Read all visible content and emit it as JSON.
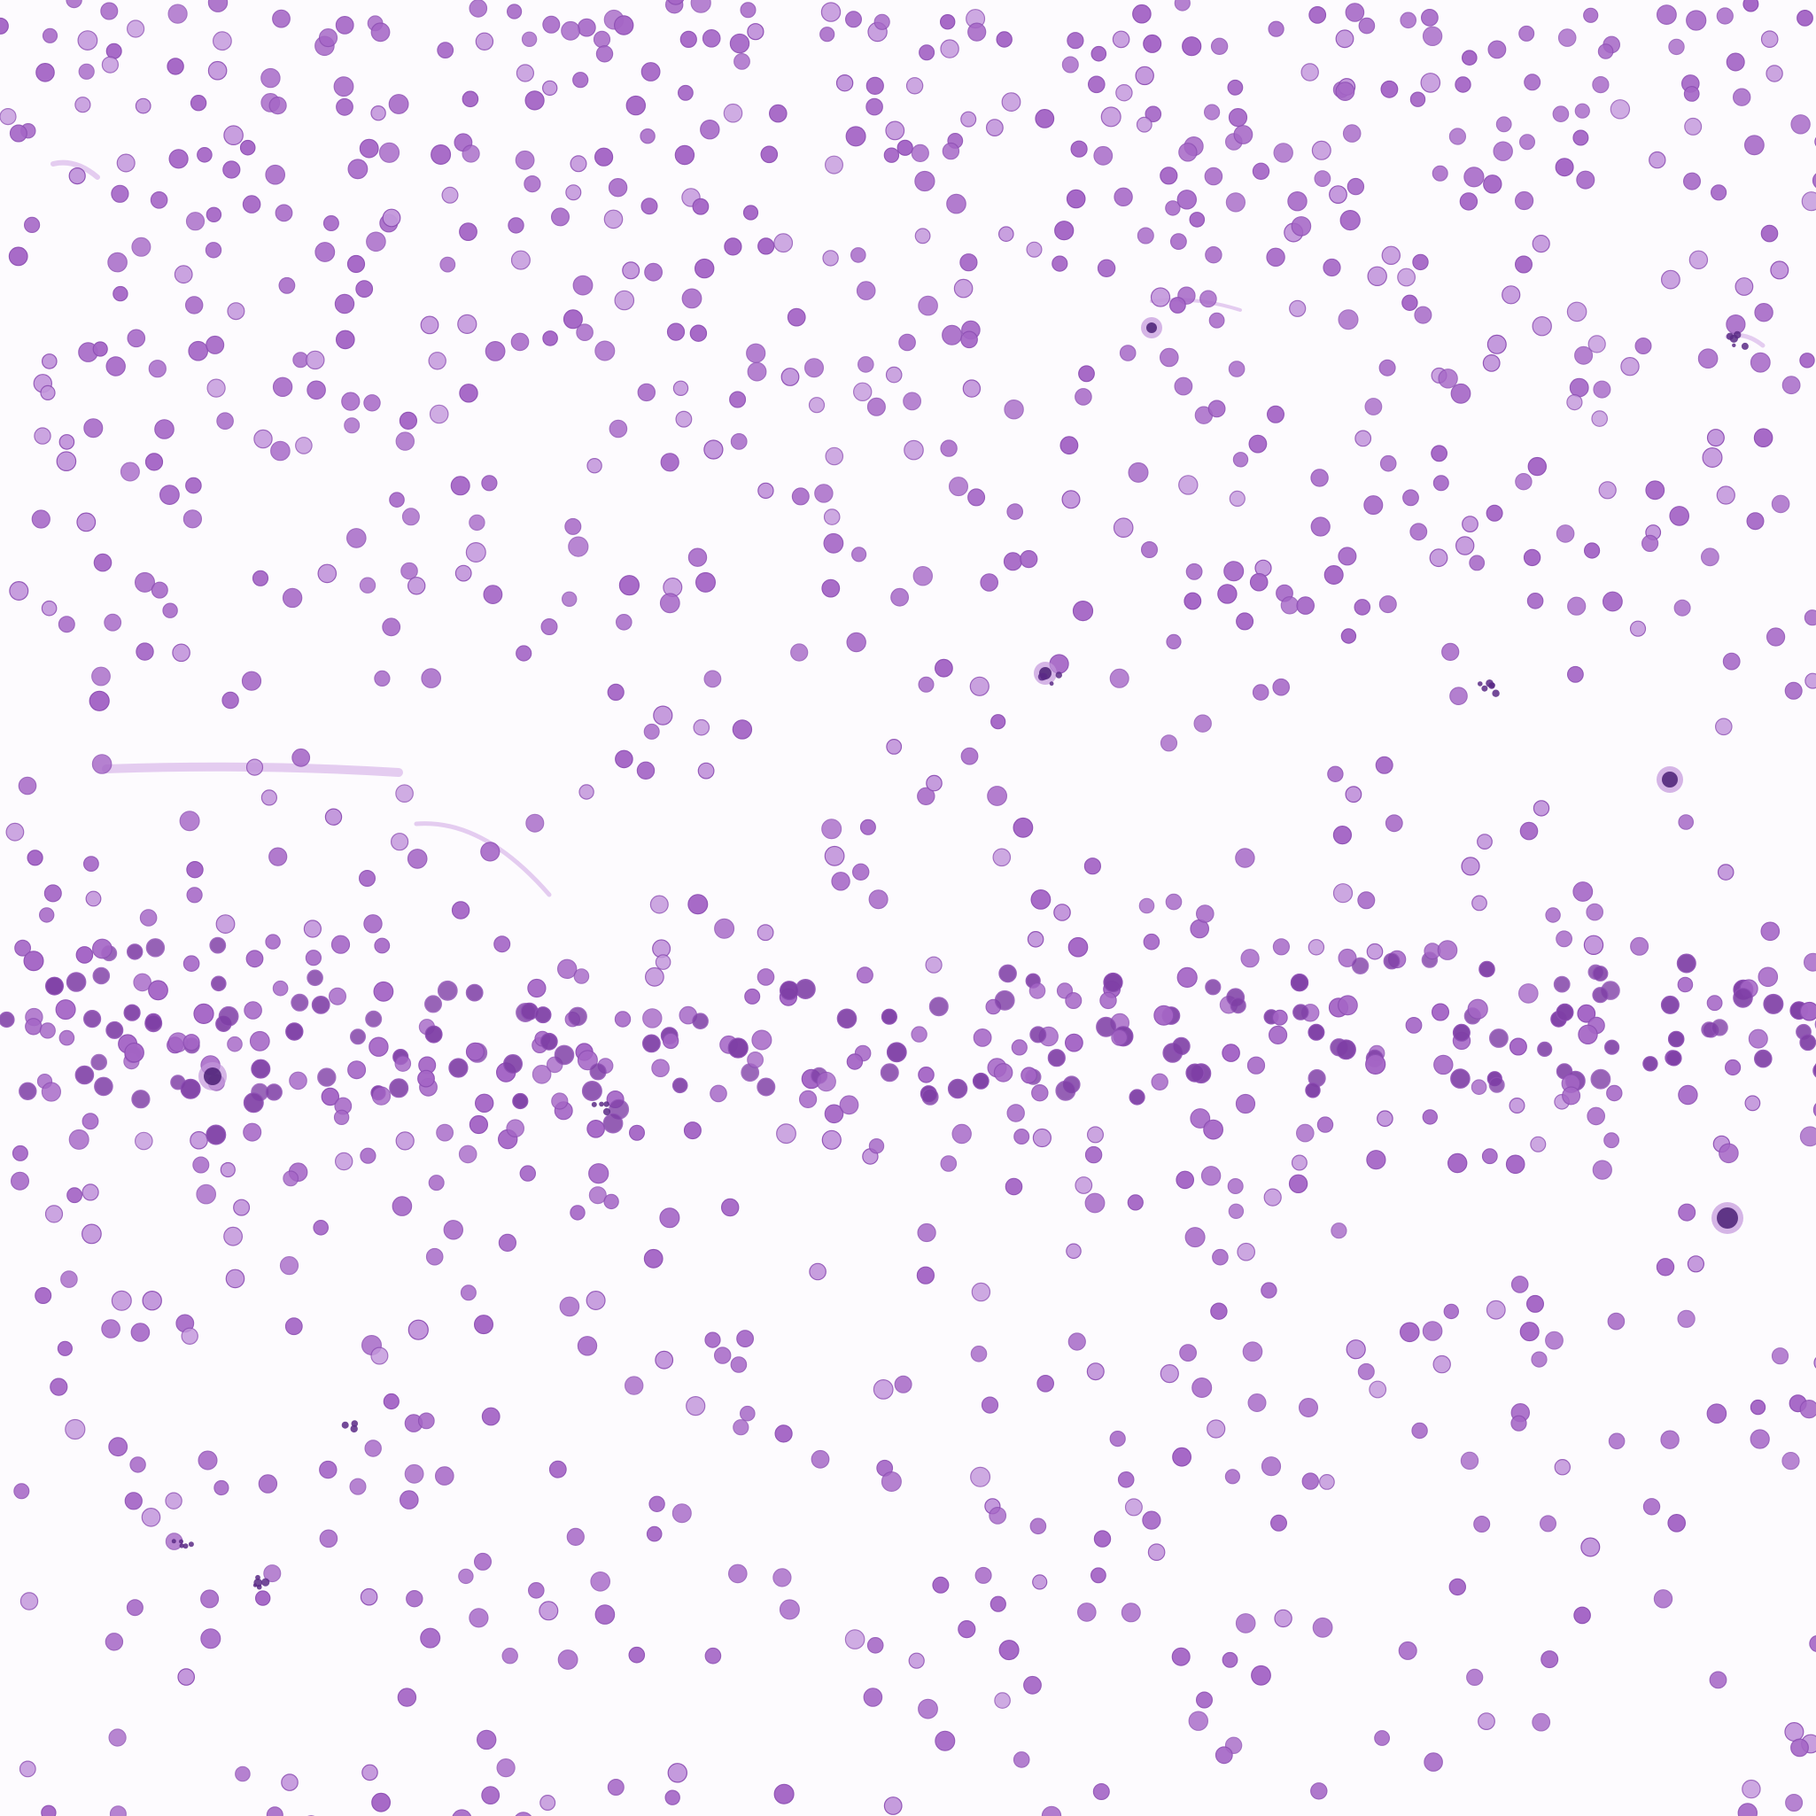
{
  "image": {
    "kind": "microscopy",
    "stain": "purple-violet",
    "colors": {
      "background": "#fdfbfe",
      "rbc_fill": "#a566c6",
      "rbc_rim": "#8e4fb4",
      "rbc_light": "#c397dc",
      "rbc_dense": "#7f3fa6",
      "nucleus": "#4a1f74",
      "fibrin": "#d9b8ea",
      "platelet": "#5b2a86"
    },
    "icons": [
      "microscope-field"
    ]
  }
}
